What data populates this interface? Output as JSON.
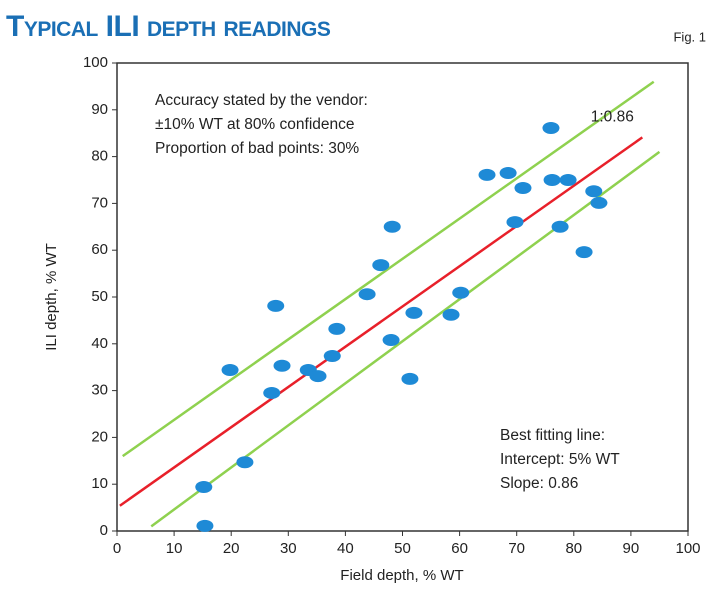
{
  "chart_data": {
    "type": "scatter",
    "title": "Typical ILI depth readings",
    "figure_label": "Fig. 1",
    "x_label": "Field depth, % WT",
    "y_label": "ILI depth, % WT",
    "xlim": [
      0,
      100
    ],
    "ylim": [
      0,
      100
    ],
    "xticks": [
      0,
      10,
      20,
      30,
      40,
      50,
      60,
      70,
      80,
      90,
      100
    ],
    "yticks": [
      0,
      10,
      20,
      30,
      40,
      50,
      60,
      70,
      80,
      90,
      100
    ],
    "grid": false,
    "color": "#1e8ad6",
    "x": [
      15.2,
      15.4,
      22.4,
      19.8,
      27.1,
      27.8,
      28.9,
      33.5,
      35.2,
      37.7,
      38.5,
      43.8,
      46.2,
      48.2,
      48.0,
      51.3,
      52.0,
      58.5,
      60.2,
      64.8,
      68.5,
      69.7,
      71.1,
      76.0,
      76.2,
      77.6,
      79.0,
      81.8,
      83.5,
      84.4
    ],
    "values": [
      9.4,
      1.1,
      14.7,
      34.4,
      29.5,
      48.1,
      35.3,
      34.4,
      33.1,
      37.4,
      43.2,
      50.6,
      56.8,
      65.0,
      40.8,
      32.5,
      46.6,
      46.2,
      50.9,
      76.1,
      76.5,
      66.0,
      73.3,
      86.1,
      75.0,
      65.0,
      75.0,
      59.6,
      72.6,
      70.1
    ],
    "lines": [
      {
        "color": "#8fd14f",
        "x": [
          1,
          94
        ],
        "y": [
          16,
          96
        ]
      },
      {
        "color": "#e8202a",
        "x": [
          0.5,
          92
        ],
        "y": [
          5.4,
          84.1
        ],
        "label": "1:0.86"
      },
      {
        "color": "#8fd14f",
        "x": [
          6,
          95
        ],
        "y": [
          1,
          81
        ]
      }
    ],
    "annotations": [
      "Accuracy stated by the vendor:",
      "±10% WT at 80% confidence",
      "Proportion of bad points: 30%",
      "Best fitting line:",
      "Intercept: 5% WT",
      "Slope: 0.86"
    ]
  }
}
